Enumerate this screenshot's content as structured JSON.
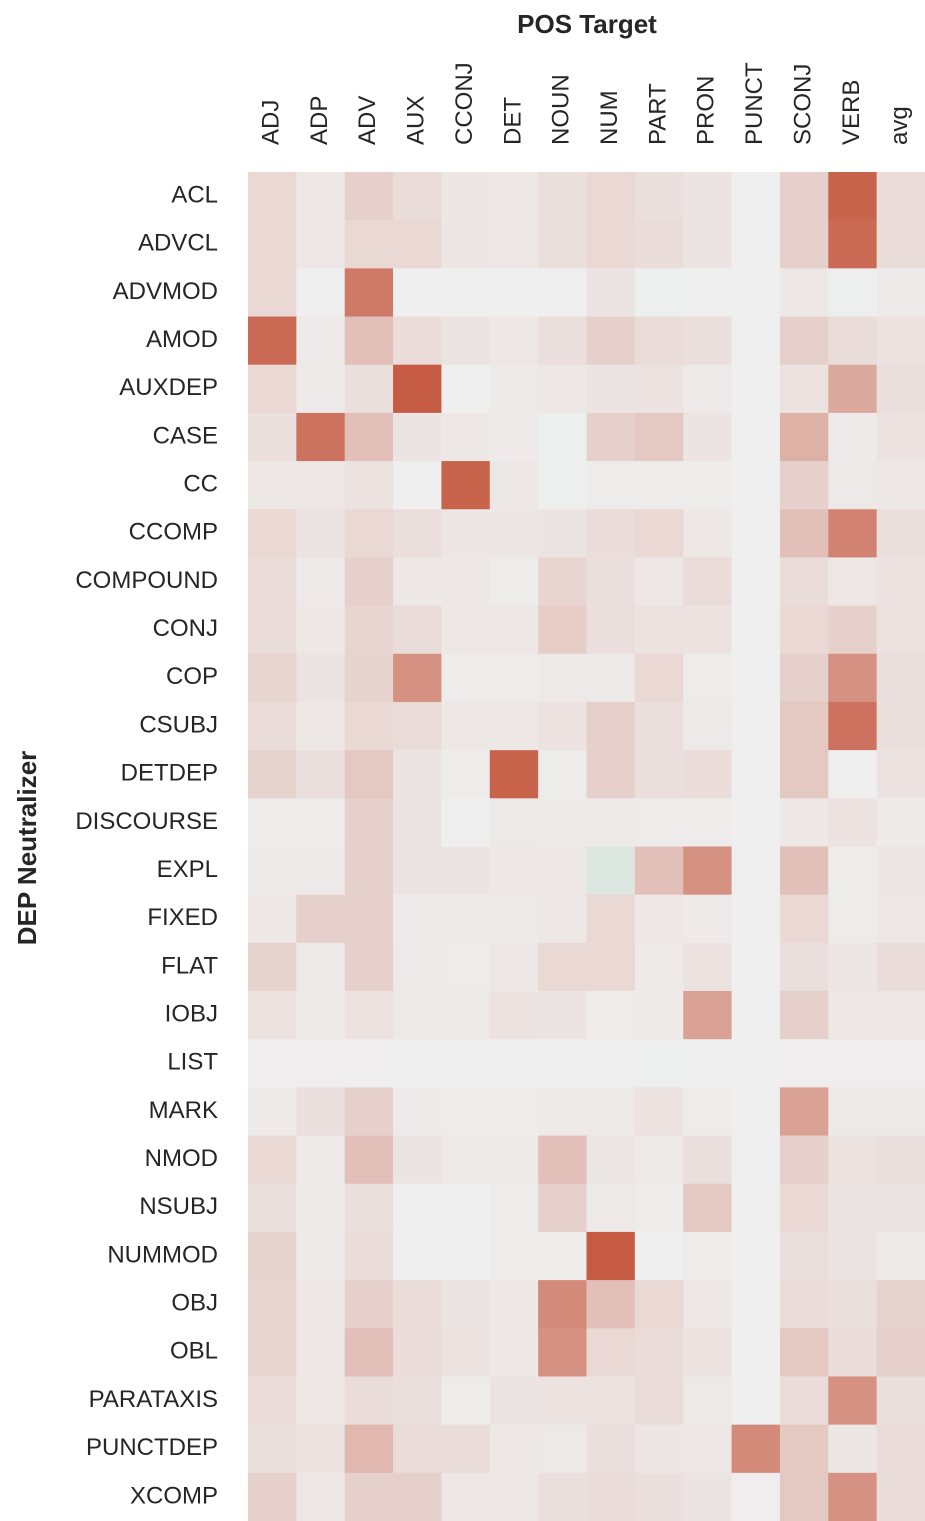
{
  "chart_data": {
    "type": "heatmap",
    "x_label": "POS Target",
    "y_label": "DEP Neutralizer",
    "categories": [
      "ADJ",
      "ADP",
      "ADV",
      "AUX",
      "CCONJ",
      "DET",
      "NOUN",
      "NUM",
      "PART",
      "PRON",
      "PUNCT",
      "SCONJ",
      "VERB",
      "avg"
    ],
    "rows": [
      "ACL",
      "ADVCL",
      "ADVMOD",
      "AMOD",
      "AUXDEP",
      "CASE",
      "CC",
      "CCOMP",
      "COMPOUND",
      "CONJ",
      "COP",
      "CSUBJ",
      "DETDEP",
      "DISCOURSE",
      "EXPL",
      "FIXED",
      "FLAT",
      "IOBJ",
      "LIST",
      "MARK",
      "NMOD",
      "NSUBJ",
      "NUMMOD",
      "OBJ",
      "OBL",
      "PARATAXIS",
      "PUNCTDEP",
      "XCOMP"
    ],
    "values": [
      [
        0.15,
        0.05,
        0.2,
        0.12,
        0.06,
        0.05,
        0.1,
        0.15,
        0.1,
        0.07,
        0,
        0.2,
        0.9,
        0.12
      ],
      [
        0.15,
        0.05,
        0.15,
        0.15,
        0.06,
        0.05,
        0.1,
        0.15,
        0.12,
        0.07,
        0,
        0.2,
        0.85,
        0.12
      ],
      [
        0.15,
        0,
        0.75,
        0,
        0,
        0,
        0,
        0.07,
        -0.01,
        0,
        0,
        0.05,
        -0.01,
        0.03
      ],
      [
        0.85,
        0.03,
        0.3,
        0.12,
        0.07,
        0.05,
        0.1,
        0.2,
        0.12,
        0.1,
        0,
        0.2,
        0.12,
        0.08
      ],
      [
        0.15,
        0.03,
        0.1,
        0.95,
        0,
        0.03,
        0.05,
        0.07,
        0.08,
        0.03,
        0,
        0.08,
        0.45,
        0.1
      ],
      [
        0.1,
        0.8,
        0.3,
        0.07,
        0.05,
        0.03,
        -0.01,
        0.2,
        0.25,
        0.07,
        0,
        0.4,
        0.03,
        0.08
      ],
      [
        0.05,
        0.05,
        0.08,
        0,
        0.9,
        0.05,
        -0.01,
        0.02,
        0.02,
        0.02,
        0,
        0.2,
        0.04,
        0.05
      ],
      [
        0.15,
        0.07,
        0.15,
        0.1,
        0.06,
        0.06,
        0.07,
        0.12,
        0.15,
        0.05,
        0,
        0.3,
        0.7,
        0.1
      ],
      [
        0.12,
        0.03,
        0.2,
        0.05,
        0.05,
        0.02,
        0.17,
        0.1,
        0.05,
        0.12,
        0,
        0.12,
        0.05,
        0.08
      ],
      [
        0.12,
        0.05,
        0.17,
        0.12,
        0.05,
        0.05,
        0.22,
        0.1,
        0.08,
        0.08,
        0,
        0.15,
        0.2,
        0.08
      ],
      [
        0.17,
        0.07,
        0.18,
        0.6,
        0.02,
        0.02,
        0.04,
        0.04,
        0.15,
        0.02,
        0,
        0.2,
        0.6,
        0.1
      ],
      [
        0.12,
        0.05,
        0.15,
        0.12,
        0.05,
        0.05,
        0.08,
        0.2,
        0.1,
        0.04,
        0,
        0.25,
        0.8,
        0.1
      ],
      [
        0.18,
        0.1,
        0.25,
        0.07,
        0.02,
        0.9,
        0.02,
        0.2,
        0.1,
        0.12,
        0,
        0.25,
        0,
        0.08
      ],
      [
        0.02,
        0.02,
        0.2,
        0.07,
        0,
        0.04,
        0.03,
        0.03,
        0.02,
        0.02,
        0,
        0.05,
        0.08,
        0.03
      ],
      [
        0.03,
        0.03,
        0.2,
        0.07,
        0.07,
        0.05,
        0.05,
        -0.1,
        0.3,
        0.6,
        0,
        0.3,
        0.02,
        0.06
      ],
      [
        0.05,
        0.2,
        0.2,
        0.03,
        0.03,
        0.03,
        0.05,
        0.15,
        0.05,
        0.03,
        0,
        0.15,
        0.02,
        0.05
      ],
      [
        0.18,
        0.04,
        0.2,
        0.04,
        0.02,
        0.05,
        0.15,
        0.15,
        0.03,
        0.08,
        0,
        0.1,
        0.06,
        0.12
      ],
      [
        0.08,
        0.03,
        0.08,
        0.04,
        0.04,
        0.08,
        0.07,
        0.02,
        0.03,
        0.5,
        0,
        0.2,
        0.05,
        0.05
      ],
      [
        0.01,
        0.01,
        0.01,
        0,
        0,
        0,
        0,
        0,
        -0.01,
        0,
        0,
        0.01,
        0.01,
        0.01
      ],
      [
        0.03,
        0.1,
        0.2,
        0.03,
        0.02,
        0.02,
        0.03,
        0.04,
        0.08,
        0.02,
        0,
        0.5,
        0.04,
        0.04
      ],
      [
        0.15,
        0.03,
        0.3,
        0.07,
        0.04,
        0.04,
        0.3,
        0.06,
        0.03,
        0.1,
        0,
        0.2,
        0.08,
        0.1
      ],
      [
        0.1,
        0.03,
        0.1,
        0,
        0,
        0.02,
        0.2,
        0.04,
        0.02,
        0.25,
        0,
        0.15,
        0.07,
        0.07
      ],
      [
        0.18,
        0.03,
        0.12,
        0,
        0,
        0.02,
        0.02,
        0.95,
        0,
        0.02,
        0,
        0.1,
        0.07,
        0.04
      ],
      [
        0.17,
        0.05,
        0.2,
        0.12,
        0.07,
        0.05,
        0.65,
        0.3,
        0.15,
        0.05,
        0,
        0.12,
        0.1,
        0.18
      ],
      [
        0.17,
        0.05,
        0.3,
        0.12,
        0.08,
        0.05,
        0.6,
        0.15,
        0.12,
        0.08,
        0,
        0.25,
        0.12,
        0.2
      ],
      [
        0.12,
        0.05,
        0.12,
        0.1,
        0.02,
        0.07,
        0.08,
        0.08,
        0.12,
        0.04,
        0,
        0.12,
        0.6,
        0.1
      ],
      [
        0.1,
        0.08,
        0.35,
        0.12,
        0.12,
        0.05,
        0.04,
        0.1,
        0.06,
        0.05,
        0.65,
        0.25,
        0.06,
        0.12
      ],
      [
        0.2,
        0.05,
        0.2,
        0.2,
        0.05,
        0.05,
        0.1,
        0.12,
        0.1,
        0.07,
        0.01,
        0.25,
        0.6,
        0.12
      ]
    ],
    "zlim": [
      -1,
      1
    ],
    "colors": [
      "#3f9a66",
      "#efefef",
      "#c4533a"
    ]
  }
}
